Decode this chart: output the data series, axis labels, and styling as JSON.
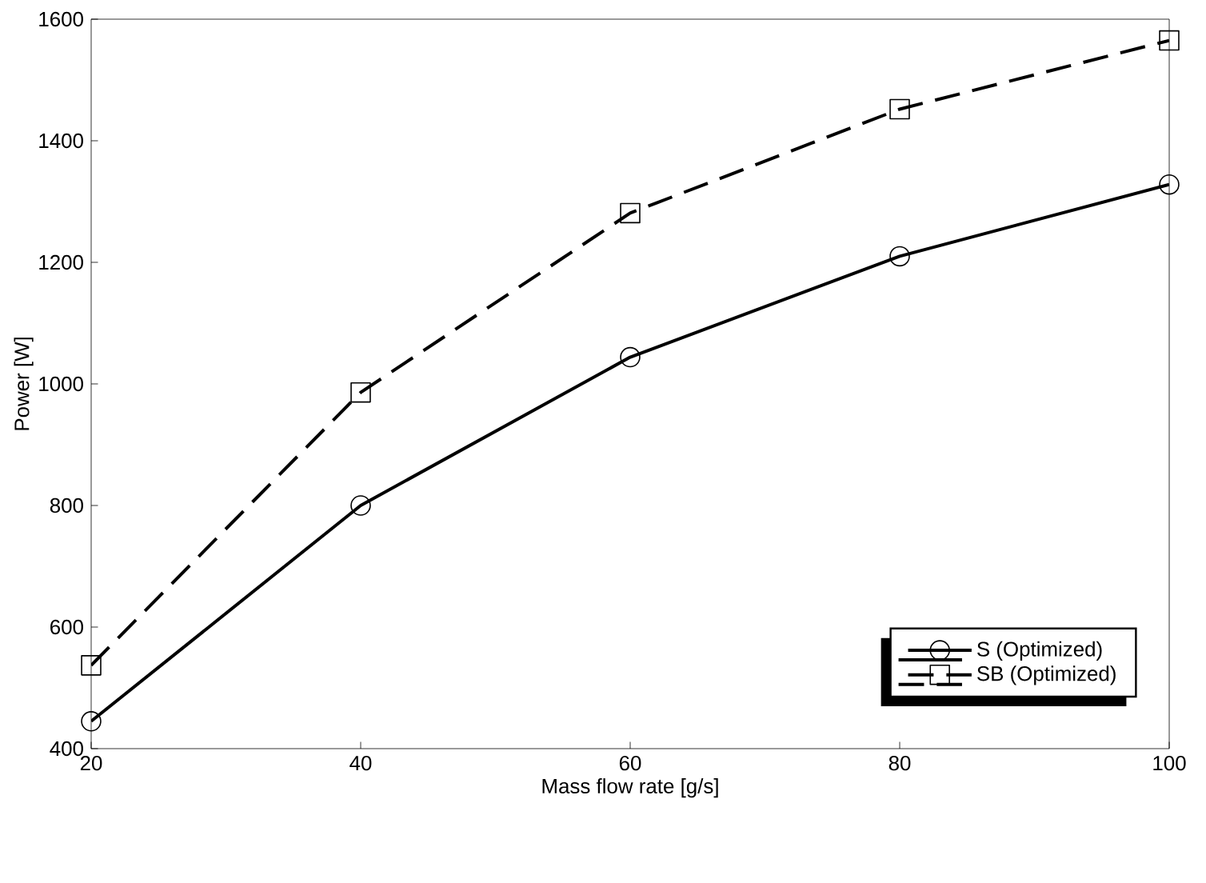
{
  "chart_data": {
    "type": "line",
    "xlabel": "Mass flow rate [g/s]",
    "ylabel": "Power [W]",
    "x": [
      20,
      40,
      60,
      80,
      100
    ],
    "xlim": [
      20,
      100
    ],
    "xticks": [
      20,
      40,
      60,
      80,
      100
    ],
    "ylim": [
      400,
      1600
    ],
    "yticks": [
      400,
      600,
      800,
      1000,
      1200,
      1400,
      1600
    ],
    "grid": false,
    "legend": "bottom right",
    "series": [
      {
        "name": "S (Optimized)",
        "color": "#000000",
        "values": [
          445,
          800,
          1044,
          1210,
          1328
        ],
        "marker": "circle",
        "line_style": "solid"
      },
      {
        "name": "SB (Optimized)",
        "color": "#000000",
        "values": [
          537,
          986,
          1281,
          1452,
          1565
        ],
        "marker": "square",
        "line_style": "dashed"
      }
    ]
  }
}
